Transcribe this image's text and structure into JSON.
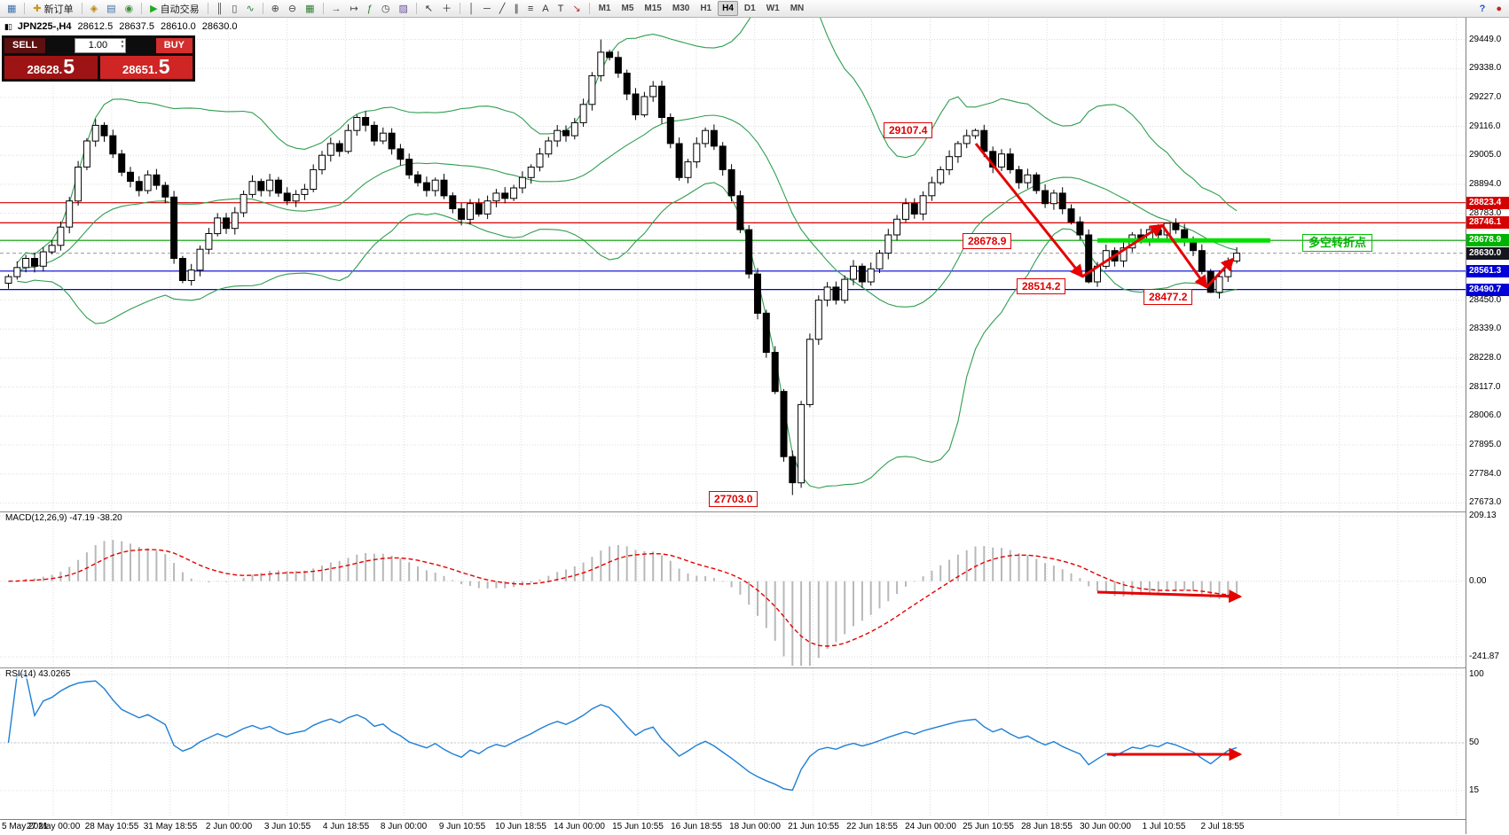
{
  "toolbar": {
    "groups": [
      {
        "name": "charts",
        "items": [
          {
            "name": "new-chart-icon",
            "glyph": "▦",
            "color": "#3b6faa"
          }
        ]
      },
      {
        "name": "order",
        "items": [
          {
            "name": "new-order-button",
            "glyph": "✚",
            "color": "#c8991e",
            "label": "新订单"
          }
        ]
      },
      {
        "name": "windows",
        "items": [
          {
            "name": "market-watch-icon",
            "glyph": "◈",
            "color": "#b8860b"
          },
          {
            "name": "data-window-icon",
            "glyph": "▤",
            "color": "#3b6faa"
          },
          {
            "name": "navigator-icon",
            "glyph": "◉",
            "color": "#3f8f3f"
          }
        ]
      },
      {
        "name": "autotrade",
        "items": [
          {
            "name": "autotrading-button",
            "glyph": "▶",
            "color": "#1faa1f",
            "label": "自动交易"
          }
        ]
      },
      {
        "name": "chart-type",
        "items": [
          {
            "name": "bar-chart-icon",
            "glyph": "║",
            "color": "#444444"
          },
          {
            "name": "candlestick-chart-icon",
            "glyph": "▯",
            "color": "#444444"
          },
          {
            "name": "line-chart-icon",
            "glyph": "∿",
            "color": "#2e7d32"
          }
        ]
      },
      {
        "name": "zoom",
        "items": [
          {
            "name": "zoom-in-icon",
            "glyph": "⊕",
            "color": "#444444"
          },
          {
            "name": "zoom-out-icon",
            "glyph": "⊖",
            "color": "#444444"
          },
          {
            "name": "tile-windows-icon",
            "glyph": "▦",
            "color": "#2e7d32"
          }
        ]
      },
      {
        "name": "tools",
        "items": [
          {
            "name": "auto-scroll-icon",
            "glyph": "→",
            "color": "#444444"
          },
          {
            "name": "chart-shift-icon",
            "glyph": "↦",
            "color": "#444444"
          },
          {
            "name": "indicators-icon",
            "glyph": "ƒ",
            "color": "#2e7d32"
          },
          {
            "name": "periods-icon",
            "glyph": "◷",
            "color": "#444444"
          },
          {
            "name": "templates-icon",
            "glyph": "▨",
            "color": "#6a4fa0"
          }
        ]
      },
      {
        "name": "cursor",
        "items": [
          {
            "name": "cursor-icon",
            "glyph": "↖",
            "color": "#333333"
          },
          {
            "name": "crosshair-icon",
            "glyph": "＋",
            "color": "#333333"
          }
        ]
      },
      {
        "name": "line-studies",
        "items": [
          {
            "name": "vertical-line-icon",
            "glyph": "│",
            "color": "#333333"
          },
          {
            "name": "horizontal-line-icon",
            "glyph": "─",
            "color": "#333333"
          },
          {
            "name": "trendline-icon",
            "glyph": "╱",
            "color": "#333333"
          },
          {
            "name": "channel-icon",
            "glyph": "∥",
            "color": "#333333"
          },
          {
            "name": "fibonacci-icon",
            "glyph": "≡",
            "color": "#333333"
          },
          {
            "name": "text-icon",
            "glyph": "A",
            "color": "#333333"
          },
          {
            "name": "label-icon",
            "glyph": "T",
            "color": "#333333"
          },
          {
            "name": "arrows-icon",
            "glyph": "↘",
            "color": "#b03030"
          }
        ]
      }
    ],
    "timeframes": [
      "M1",
      "M5",
      "M15",
      "M30",
      "H1",
      "H4",
      "D1",
      "W1",
      "MN"
    ],
    "active_timeframe": "H4",
    "right_icons": [
      {
        "name": "help-icon",
        "glyph": "?",
        "color": "#2255cc"
      },
      {
        "name": "community-icon",
        "glyph": "●",
        "color": "#cc2222"
      }
    ]
  },
  "quote_bar": {
    "symbol": "JPN225-,H4",
    "open": "28612.5",
    "high": "28637.5",
    "low": "28610.0",
    "close": "28630.0"
  },
  "trade_panel": {
    "sell_label": "SELL",
    "buy_label": "BUY",
    "volume": "1.00",
    "sell_price": "28628.",
    "sell_pip": "5",
    "buy_price": "28651.",
    "buy_pip": "5"
  },
  "price_axis": {
    "ticks": [
      "29449.0",
      "29338.0",
      "29227.0",
      "29116.0",
      "29005.0",
      "28894.0",
      "28783.0",
      "28672.0",
      "28561.0",
      "28450.0",
      "28339.0",
      "28228.0",
      "28117.0",
      "28006.0",
      "27895.0",
      "27784.0",
      "27673.0"
    ],
    "badges": [
      {
        "text": "28823.4",
        "bg": "#d60000"
      },
      {
        "text": "28746.1",
        "bg": "#d60000"
      },
      {
        "text": "28678.9",
        "bg": "#00b300"
      },
      {
        "text": "28630.0",
        "bg": "#15151f"
      },
      {
        "text": "28561.3",
        "bg": "#0000d6"
      },
      {
        "text": "28490.7",
        "bg": "#0000d6"
      }
    ]
  },
  "hlines": [
    {
      "price": 28823.4,
      "color": "#d60000",
      "style": "solid"
    },
    {
      "price": 28746.1,
      "color": "#d60000",
      "style": "solid"
    },
    {
      "price": 28678.9,
      "color": "#009900",
      "style": "solid"
    },
    {
      "price": 28630.0,
      "color": "#aaaaaa",
      "style": "dashed"
    },
    {
      "price": 28561.3,
      "color": "#0000d6",
      "style": "solid"
    },
    {
      "price": 28490.7,
      "color": "#0000d6",
      "style": "solid"
    }
  ],
  "annotations": {
    "high1": "29107.4",
    "level1": "28678.9",
    "low1": "28514.2",
    "low2": "28477.2",
    "low3": "27703.0",
    "turning_point": "多空转折点"
  },
  "indicators": {
    "macd": {
      "label": "MACD(12,26,9) -47.19 -38.20",
      "axis": [
        "209.13",
        "0.00",
        "-241.87"
      ]
    },
    "rsi": {
      "label": "RSI(14) 43.0265",
      "axis": [
        "100",
        "50",
        "15"
      ]
    }
  },
  "chart_data": {
    "type": "candlestick",
    "symbol": "JPN225-",
    "timeframe": "H4",
    "title": "JPN225-,H4",
    "last_ohlc": {
      "open": 28612.5,
      "high": 28637.5,
      "low": 28610.0,
      "close": 28630.0
    },
    "y_ticks": [
      29449.0,
      29338.0,
      29227.0,
      29116.0,
      29005.0,
      28894.0,
      28783.0,
      28672.0,
      28561.0,
      28450.0,
      28339.0,
      28228.0,
      28117.0,
      28006.0,
      27895.0,
      27784.0,
      27673.0
    ],
    "levels": [
      28823.4,
      28746.1,
      28678.9,
      28561.3,
      28490.7
    ],
    "closes": [
      28540,
      28575,
      28610,
      28580,
      28635,
      28660,
      28730,
      28830,
      28960,
      29060,
      29120,
      29080,
      29010,
      28940,
      28905,
      28870,
      28930,
      28890,
      28845,
      28610,
      28525,
      28565,
      28645,
      28705,
      28765,
      28725,
      28785,
      28855,
      28905,
      28870,
      28910,
      28860,
      28830,
      28855,
      28875,
      28950,
      29005,
      29050,
      29020,
      29100,
      29150,
      29120,
      29060,
      29090,
      29030,
      28990,
      28930,
      28900,
      28870,
      28910,
      28850,
      28800,
      28760,
      28820,
      28780,
      28830,
      28860,
      28840,
      28880,
      28920,
      28960,
      29010,
      29060,
      29100,
      29080,
      29130,
      29200,
      29310,
      29400,
      29380,
      29320,
      29240,
      29160,
      29230,
      29270,
      29150,
      29050,
      28920,
      28980,
      29050,
      29100,
      29040,
      28950,
      28850,
      28720,
      28550,
      28400,
      28250,
      28100,
      27850,
      27750,
      28050,
      28300,
      28450,
      28500,
      28450,
      28530,
      28580,
      28520,
      28570,
      28630,
      28700,
      28760,
      28820,
      28780,
      28850,
      28900,
      28950,
      29000,
      29050,
      29080,
      29100,
      29020,
      28960,
      29010,
      28950,
      28900,
      28930,
      28870,
      28820,
      28860,
      28800,
      28750,
      28700,
      28520,
      28580,
      28640,
      28600,
      28650,
      28700,
      28680,
      28720,
      28700,
      28745,
      28720,
      28680,
      28640,
      28560,
      28480,
      28540,
      28600,
      28630
    ],
    "extremes": [
      {
        "bar": 68,
        "high": 29449.0
      },
      {
        "bar": 90,
        "low": 27703.0
      },
      {
        "bar": 111,
        "high": 29107.4
      },
      {
        "bar": 124,
        "low": 28514.2
      },
      {
        "bar": 133,
        "high": 28746.1
      },
      {
        "bar": 138,
        "low": 28477.2
      }
    ],
    "overlays": {
      "bollinger": {
        "period": 20,
        "deviation": 2
      }
    },
    "macd": {
      "fast": 12,
      "slow": 26,
      "signal": 9,
      "current_main": -47.19,
      "current_signal": -38.2,
      "scale_max": 209.13,
      "scale_min": -241.87
    },
    "rsi": {
      "period": 14,
      "current": 43.0265
    },
    "time_labels": [
      "5 May 2021",
      "27 May 00:00",
      "28 May 10:55",
      "31 May 18:55",
      "2 Jun 00:00",
      "3 Jun 10:55",
      "4 Jun 18:55",
      "8 Jun 00:00",
      "9 Jun 10:55",
      "10 Jun 18:55",
      "14 Jun 00:00",
      "15 Jun 10:55",
      "16 Jun 18:55",
      "18 Jun 00:00",
      "21 Jun 10:55",
      "22 Jun 18:55",
      "24 Jun 00:00",
      "25 Jun 10:55",
      "28 Jun 18:55",
      "30 Jun 00:00",
      "1 Jul 10:55",
      "2 Jul 18:55"
    ]
  }
}
